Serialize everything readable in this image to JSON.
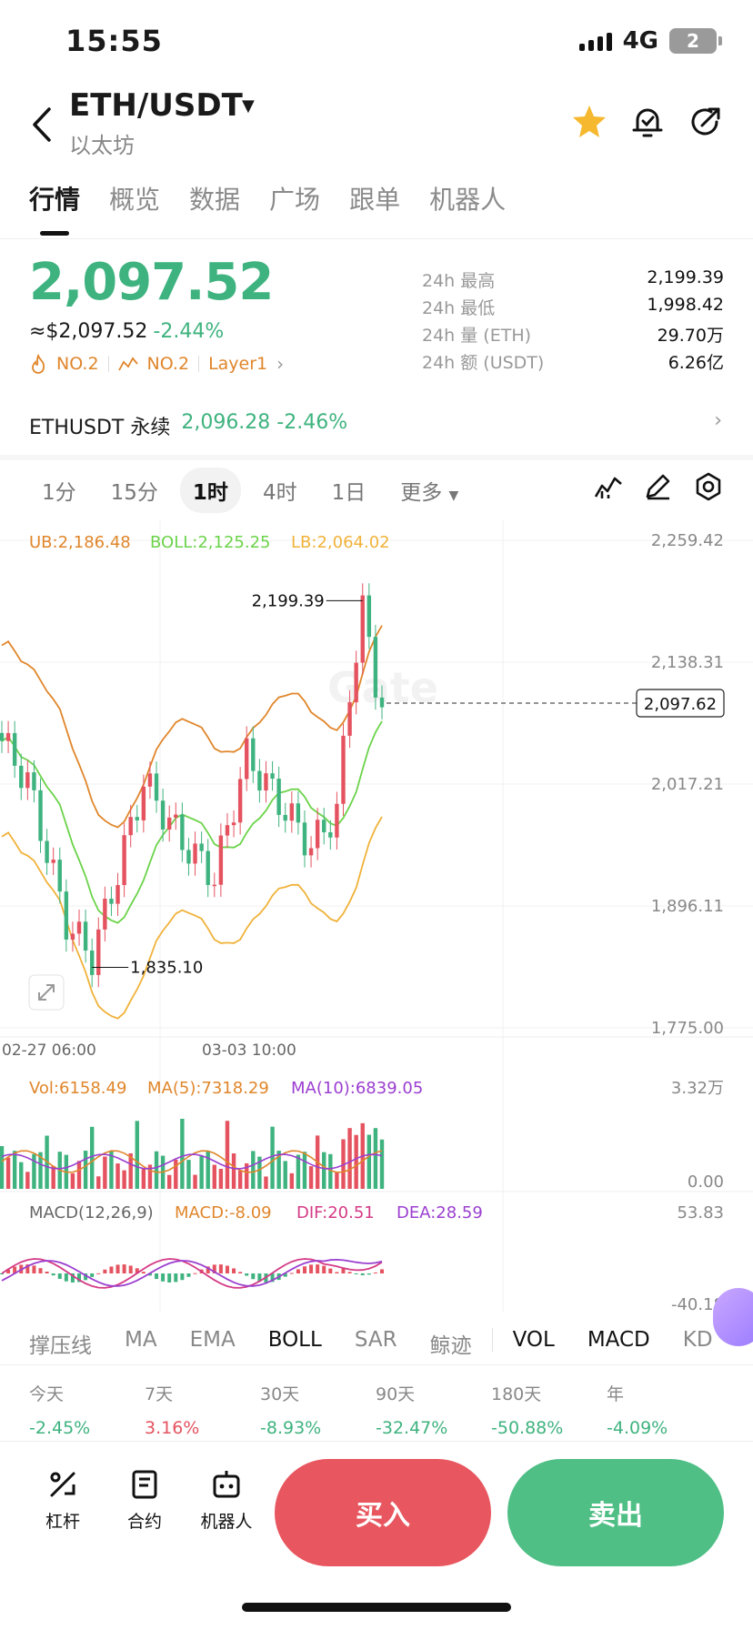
{
  "status": {
    "time": "15:55",
    "network": "4G",
    "battery": "2"
  },
  "header": {
    "pair": "ETH/USDT",
    "name": "以太坊"
  },
  "tabs": [
    "行情",
    "概览",
    "数据",
    "广场",
    "跟单",
    "机器人"
  ],
  "price": {
    "last": "2,097.52",
    "usd": "≈$2,097.52",
    "change": "-2.44%",
    "tags": [
      "NO.2",
      "NO.2",
      "Layer1"
    ]
  },
  "stats": [
    {
      "label": "24h  最高",
      "value": "2,199.39"
    },
    {
      "label": "24h  最低",
      "value": "1,998.42"
    },
    {
      "label": "24h  量 (ETH)",
      "value": "29.70万"
    },
    {
      "label": "24h  额 (USDT)",
      "value": "6.26亿"
    }
  ],
  "perpetual": {
    "name": "ETHUSDT 永续",
    "price": "2,096.28",
    "change": "-2.46%"
  },
  "intervals": [
    "1分",
    "15分",
    "1时",
    "4时",
    "1日",
    "更多"
  ],
  "chart": {
    "boll_ub": "UB:2,186.48",
    "boll_mid": "BOLL:2,125.25",
    "boll_lb": "LB:2,064.02",
    "yticks": [
      "2,259.42",
      "2,138.31",
      "2,017.21",
      "1,896.11",
      "1,775.00"
    ],
    "current": "2,097.62",
    "high_label": "2,199.39",
    "low_label": "1,835.10",
    "xticks": [
      "02-27 06:00",
      "03-03 10:00"
    ],
    "watermark": "Gate",
    "vol": "Vol:6158.49",
    "ma5": "MA(5):7318.29",
    "ma10": "MA(10):6839.05",
    "vol_max": "3.32万",
    "vol_min": "0.00",
    "macd_title": "MACD(12,26,9)",
    "macd": "MACD:-8.09",
    "dif": "DIF:20.51",
    "dea": "DEA:28.59",
    "macd_max": "53.83",
    "macd_min": "-40.18"
  },
  "chart_data": {
    "type": "candlestick",
    "interval": "1时",
    "ylim": [
      1775.0,
      2259.42
    ],
    "high": 2199.39,
    "low": 1835.1,
    "last": 2097.62,
    "overlays": [
      "BOLL"
    ],
    "indicators": [
      "VOL",
      "MACD"
    ]
  },
  "indicators": [
    "撑压线",
    "MA",
    "EMA",
    "BOLL",
    "SAR",
    "鲸迹",
    "VOL",
    "MACD",
    "KD"
  ],
  "performance": [
    {
      "label": "今天",
      "value": "-2.45%",
      "dir": "neg"
    },
    {
      "label": "7天",
      "value": "3.16%",
      "dir": "pos"
    },
    {
      "label": "30天",
      "value": "-8.93%",
      "dir": "neg"
    },
    {
      "label": "90天",
      "value": "-32.47%",
      "dir": "neg"
    },
    {
      "label": "180天",
      "value": "-50.88%",
      "dir": "neg"
    },
    {
      "label": "年",
      "value": "-4.09%",
      "dir": "neg"
    }
  ],
  "bottom": {
    "lever": "杠杆",
    "contract": "合约",
    "robot": "机器人",
    "buy": "买入",
    "sell": "卖出"
  },
  "colors": {
    "up": "#e4535f",
    "down": "#3fb37f",
    "ub": "#e0862b",
    "mid": "#6bd34a",
    "lb": "#f0b23a"
  }
}
